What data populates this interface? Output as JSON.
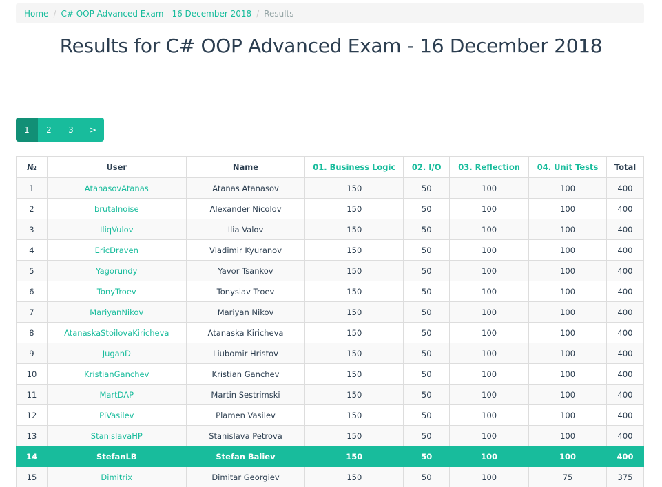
{
  "breadcrumb": {
    "home": "Home",
    "contest": "C# OOP Advanced Exam - 16 December 2018",
    "current": "Results"
  },
  "title": "Results for C# OOP Advanced Exam - 16 December 2018",
  "pagination": {
    "pages": [
      "1",
      "2",
      "3"
    ],
    "next": ">",
    "active_page": "1"
  },
  "table": {
    "headers": {
      "num": "№",
      "user": "User",
      "name": "Name",
      "task1": "01. Business Logic",
      "task2": "02. I/O",
      "task3": "03. Reflection",
      "task4": "04. Unit Tests",
      "total": "Total"
    },
    "rows": [
      {
        "num": "1",
        "user": "AtanasovAtanas",
        "name": "Atanas Atanasov",
        "t1": "150",
        "t2": "50",
        "t3": "100",
        "t4": "100",
        "total": "400"
      },
      {
        "num": "2",
        "user": "brutalnoise",
        "name": "Alexander Nicolov",
        "t1": "150",
        "t2": "50",
        "t3": "100",
        "t4": "100",
        "total": "400"
      },
      {
        "num": "3",
        "user": "IliqVulov",
        "name": "Ilia Valov",
        "t1": "150",
        "t2": "50",
        "t3": "100",
        "t4": "100",
        "total": "400"
      },
      {
        "num": "4",
        "user": "EricDraven",
        "name": "Vladimir Kyuranov",
        "t1": "150",
        "t2": "50",
        "t3": "100",
        "t4": "100",
        "total": "400"
      },
      {
        "num": "5",
        "user": "Yagorundy",
        "name": "Yavor Tsankov",
        "t1": "150",
        "t2": "50",
        "t3": "100",
        "t4": "100",
        "total": "400"
      },
      {
        "num": "6",
        "user": "TonyTroev",
        "name": "Tonyslav Troev",
        "t1": "150",
        "t2": "50",
        "t3": "100",
        "t4": "100",
        "total": "400"
      },
      {
        "num": "7",
        "user": "MariyanNikov",
        "name": "Mariyan Nikov",
        "t1": "150",
        "t2": "50",
        "t3": "100",
        "t4": "100",
        "total": "400"
      },
      {
        "num": "8",
        "user": "AtanaskaStoilovaKiricheva",
        "name": "Atanaska Kiricheva",
        "t1": "150",
        "t2": "50",
        "t3": "100",
        "t4": "100",
        "total": "400"
      },
      {
        "num": "9",
        "user": "JuganD",
        "name": "Liubomir Hristov",
        "t1": "150",
        "t2": "50",
        "t3": "100",
        "t4": "100",
        "total": "400"
      },
      {
        "num": "10",
        "user": "KristianGanchev",
        "name": "Kristian Ganchev",
        "t1": "150",
        "t2": "50",
        "t3": "100",
        "t4": "100",
        "total": "400"
      },
      {
        "num": "11",
        "user": "MartDAP",
        "name": "Martin Sestrimski",
        "t1": "150",
        "t2": "50",
        "t3": "100",
        "t4": "100",
        "total": "400"
      },
      {
        "num": "12",
        "user": "PlVasilev",
        "name": "Plamen Vasilev",
        "t1": "150",
        "t2": "50",
        "t3": "100",
        "t4": "100",
        "total": "400"
      },
      {
        "num": "13",
        "user": "StanislavaHP",
        "name": "Stanislava Petrova",
        "t1": "150",
        "t2": "50",
        "t3": "100",
        "t4": "100",
        "total": "400"
      },
      {
        "num": "14",
        "user": "StefanLB",
        "name": "Stefan Baliev",
        "t1": "150",
        "t2": "50",
        "t3": "100",
        "t4": "100",
        "total": "400"
      },
      {
        "num": "15",
        "user": "Dimitrix",
        "name": "Dimitar Georgiev",
        "t1": "150",
        "t2": "50",
        "t3": "100",
        "t4": "75",
        "total": "375"
      }
    ],
    "highlighted_user": "StefanLB"
  },
  "colors": {
    "accent": "#18bc9c",
    "accent_dark": "#128f76",
    "text": "#2c3e50"
  }
}
